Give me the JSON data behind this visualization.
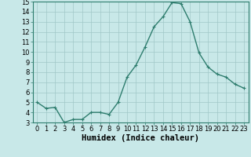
{
  "x": [
    0,
    1,
    2,
    3,
    4,
    5,
    6,
    7,
    8,
    9,
    10,
    11,
    12,
    13,
    14,
    15,
    16,
    17,
    18,
    19,
    20,
    21,
    22,
    23
  ],
  "y": [
    5.0,
    4.4,
    4.5,
    3.0,
    3.3,
    3.3,
    4.0,
    4.0,
    3.8,
    5.0,
    7.5,
    8.7,
    10.5,
    12.5,
    13.5,
    14.9,
    14.8,
    13.0,
    9.9,
    8.5,
    7.8,
    7.5,
    6.8,
    6.4
  ],
  "line_color": "#2e7d6e",
  "marker": "+",
  "marker_size": 3,
  "bg_color": "#c8e8e8",
  "grid_color": "#a0c8c8",
  "xlabel": "Humidex (Indice chaleur)",
  "ylim": [
    3,
    15
  ],
  "xlim": [
    -0.5,
    23.5
  ],
  "yticks": [
    3,
    4,
    5,
    6,
    7,
    8,
    9,
    10,
    11,
    12,
    13,
    14,
    15
  ],
  "xticks": [
    0,
    1,
    2,
    3,
    4,
    5,
    6,
    7,
    8,
    9,
    10,
    11,
    12,
    13,
    14,
    15,
    16,
    17,
    18,
    19,
    20,
    21,
    22,
    23
  ],
  "tick_label_fontsize": 6,
  "xlabel_fontsize": 7.5,
  "linewidth": 1.0
}
